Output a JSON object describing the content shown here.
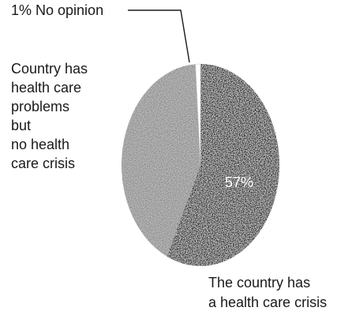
{
  "chart_data": {
    "type": "pie",
    "slices": [
      {
        "label": "The country has a health care crisis",
        "label_lines": [
          "The country has",
          "a health care crisis"
        ],
        "value": 57,
        "value_label": "57%",
        "color": "#1c1c1c"
      },
      {
        "label": "Country has health care problems but no health care crisis",
        "label_lines": [
          "Country has",
          "health care",
          "problems",
          "but",
          "no health",
          "care crisis"
        ],
        "value": 42,
        "color": "#c4c4c4"
      },
      {
        "label": "1% No opinion",
        "label_lines": [
          "1% No opinion"
        ],
        "value": 1,
        "color": "#ffffff"
      }
    ]
  }
}
